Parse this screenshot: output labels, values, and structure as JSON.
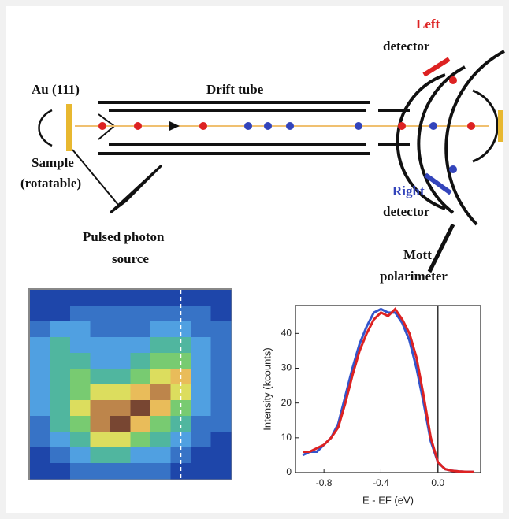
{
  "diagram": {
    "labels": [
      "Left",
      "detector",
      "Au (111)",
      "Drift tube",
      "Sample",
      "(rotatable)",
      "Right",
      "detector",
      "Pulsed photon",
      "source",
      "Mott",
      "polarimeter"
    ]
  },
  "chart_data": [
    {
      "type": "heatmap",
      "z": [
        [
          1,
          1,
          1,
          1,
          1,
          1,
          1,
          1,
          1,
          1
        ],
        [
          1,
          1,
          2,
          2,
          2,
          2,
          2,
          2,
          2,
          1
        ],
        [
          2,
          3,
          3,
          2,
          2,
          2,
          3,
          3,
          2,
          2
        ],
        [
          3,
          4,
          3,
          3,
          3,
          3,
          4,
          4,
          3,
          2
        ],
        [
          3,
          4,
          4,
          3,
          3,
          4,
          5,
          5,
          3,
          2
        ],
        [
          3,
          4,
          5,
          4,
          4,
          5,
          6,
          7,
          3,
          2
        ],
        [
          3,
          4,
          5,
          6,
          6,
          7,
          8,
          6,
          3,
          2
        ],
        [
          3,
          4,
          6,
          8,
          8,
          9,
          7,
          5,
          3,
          2
        ],
        [
          2,
          4,
          5,
          8,
          9,
          7,
          5,
          4,
          2,
          2
        ],
        [
          2,
          3,
          4,
          6,
          6,
          5,
          4,
          3,
          2,
          1
        ],
        [
          1,
          2,
          3,
          4,
          4,
          3,
          3,
          2,
          1,
          1
        ],
        [
          1,
          1,
          2,
          2,
          2,
          2,
          2,
          1,
          1,
          1
        ]
      ]
    },
    {
      "type": "line",
      "ylabel": "Intensity (kcounts)",
      "xlabel": "E - EF (eV)",
      "x": [
        -0.95,
        -0.9,
        -0.85,
        -0.8,
        -0.75,
        -0.7,
        -0.65,
        -0.6,
        -0.55,
        -0.5,
        -0.45,
        -0.4,
        -0.35,
        -0.3,
        -0.25,
        -0.2,
        -0.15,
        -0.1,
        -0.05,
        0,
        0.05,
        0.1,
        0.15,
        0.2,
        0.25
      ],
      "series": [
        {
          "color": "#3355cc",
          "values": [
            5,
            6,
            6,
            8,
            10,
            14,
            22,
            30,
            37,
            42,
            46,
            47,
            46,
            46,
            43,
            38,
            30,
            20,
            9,
            3,
            1,
            0.5,
            0.3,
            0.2,
            0.2
          ]
        },
        {
          "color": "#dd2222",
          "values": [
            6,
            6,
            7,
            8,
            10,
            13,
            20,
            28,
            35,
            40,
            44,
            46,
            45,
            47,
            44,
            40,
            33,
            22,
            10,
            3,
            1,
            0.5,
            0.3,
            0.2,
            0.2
          ]
        }
      ],
      "xlim": [
        -1.0,
        0.3
      ],
      "ylim": [
        0,
        48
      ],
      "xticks": [
        -0.8,
        -0.4,
        {
          "value": 0,
          "label": "0.0"
        }
      ],
      "yticks": [
        0,
        10,
        20,
        30,
        40
      ]
    }
  ]
}
